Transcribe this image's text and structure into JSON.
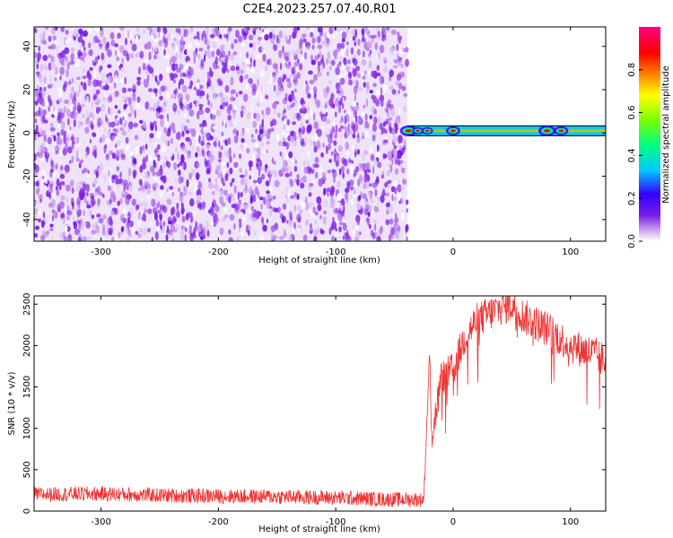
{
  "figure": {
    "title": "C2E4.2023.257.07.40.R01"
  },
  "chart_data": [
    {
      "type": "heatmap",
      "xlabel": "Height of straight line (km)",
      "ylabel": "Frequency (Hz)",
      "xlim": [
        -357,
        130
      ],
      "ylim": [
        -50,
        49
      ],
      "xticks": [
        -300,
        -200,
        -100,
        0,
        100
      ],
      "yticks": [
        -40,
        -20,
        0,
        20,
        40
      ],
      "colorbar": {
        "label": "Normalized spectral amplitude",
        "range": [
          0,
          1
        ],
        "ticks": [
          0.0,
          0.2,
          0.4,
          0.6,
          0.8
        ],
        "colors": [
          "#ffffff",
          "#d9b8f0",
          "#7a1fe8",
          "#3300ff",
          "#00c8ff",
          "#00ff80",
          "#80ff00",
          "#ffff00",
          "#ff8000",
          "#ff0000",
          "#ff0080"
        ]
      },
      "regions": [
        {
          "x_range": [
            -357,
            -39
          ],
          "freq_range": [
            -50,
            49
          ],
          "amplitude": "noise 0.0-0.12"
        },
        {
          "x_range": [
            -39,
            130
          ],
          "freq_range": [
            -1.5,
            3.5
          ],
          "amplitude": "0.4-0.7",
          "center_freq": 1
        }
      ],
      "grid": false
    },
    {
      "type": "line",
      "xlabel": "Height of straight line (km)",
      "ylabel": "SNR (10 * v/v)",
      "xlim": [
        -357,
        130
      ],
      "ylim": [
        0,
        2600
      ],
      "xticks": [
        -300,
        -200,
        -100,
        0,
        100
      ],
      "yticks": [
        0,
        500,
        1000,
        1500,
        2000,
        2500
      ],
      "series": [
        {
          "color": "#ee3333",
          "x": [
            -357,
            -300,
            -250,
            -200,
            -150,
            -100,
            -50,
            -25,
            -20,
            -18,
            -10,
            0,
            10,
            20,
            40,
            50,
            60,
            80,
            100,
            120,
            130
          ],
          "y": [
            200,
            210,
            190,
            180,
            175,
            160,
            140,
            140,
            1900,
            900,
            1600,
            1700,
            2100,
            2300,
            2450,
            2500,
            2350,
            2200,
            2000,
            1900,
            1800
          ]
        }
      ],
      "grid": false
    }
  ]
}
